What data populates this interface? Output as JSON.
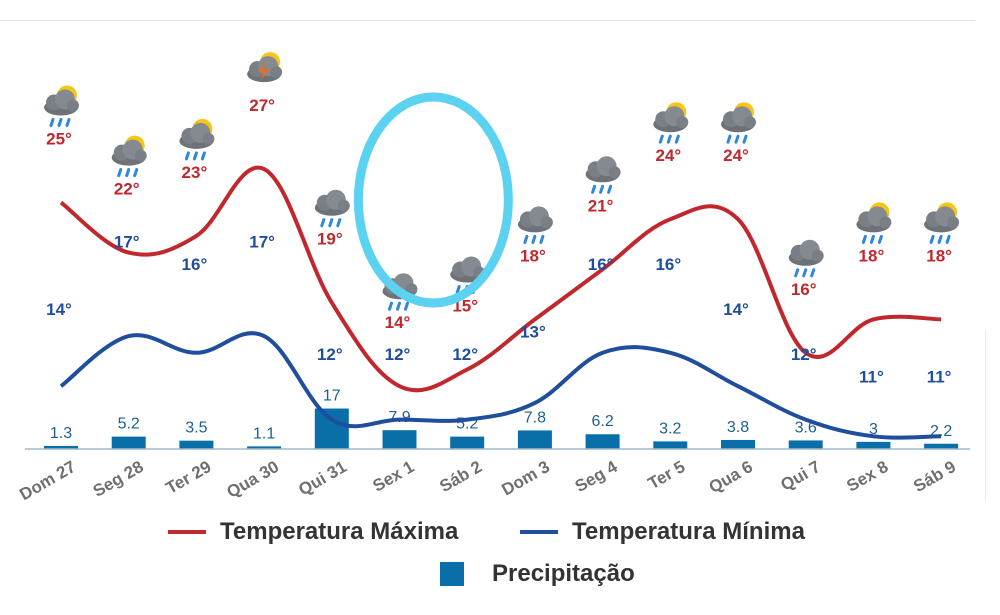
{
  "chart_data": {
    "type": "line",
    "categories": [
      "Dom 27",
      "Seg 28",
      "Ter 29",
      "Qua 30",
      "Qui 31",
      "Sex 1",
      "Sáb 2",
      "Dom 3",
      "Seg 4",
      "Ter 5",
      "Qua 6",
      "Qui 7",
      "Sex 8",
      "Sáb 9"
    ],
    "series": [
      {
        "name": "Temperatura Máxima",
        "color": "#c0282d",
        "values": [
          25,
          22,
          23,
          27,
          19,
          14,
          15,
          18,
          21,
          24,
          24,
          16,
          18,
          18
        ],
        "labels": [
          "25°",
          "22°",
          "23°",
          "27°",
          "19°",
          "14°",
          "15°",
          "18°",
          "21°",
          "24°",
          "24°",
          "16°",
          "18°",
          "18°"
        ]
      },
      {
        "name": "Temperatura Mínima",
        "color": "#1f4e9c",
        "values": [
          14,
          17,
          16,
          17,
          12,
          12,
          12,
          13,
          16,
          16,
          14,
          12,
          11,
          11
        ],
        "labels": [
          "14°",
          "17°",
          "16°",
          "17°",
          "12°",
          "12°",
          "12°",
          "13°",
          "16°",
          "16°",
          "14°",
          "12°",
          "11°",
          "11°"
        ]
      },
      {
        "name": "Precipitação",
        "color": "#0a6fa8",
        "type": "bar",
        "values": [
          1.3,
          5.2,
          3.5,
          1.1,
          17,
          7.9,
          5.2,
          7.8,
          6.2,
          3.2,
          3.8,
          3.6,
          3,
          2.2
        ],
        "labels": [
          "1.3",
          "5.2",
          "3.5",
          "1.1",
          "17",
          "7.9",
          "5.2",
          "7.8",
          "6.2",
          "3.2",
          "3.8",
          "3.6",
          "3",
          "2.2"
        ]
      }
    ],
    "icons": [
      "partly-cloudy-rain-icon",
      "partly-cloudy-rain-icon",
      "partly-cloudy-rain-icon",
      "partly-cloudy-thunderstorm-icon",
      "cloud-rain-icon",
      "cloud-rain-icon",
      "cloud-rain-icon",
      "cloud-rain-icon",
      "cloud-rain-icon",
      "partly-cloudy-rain-icon",
      "partly-cloudy-rain-icon",
      "cloud-rain-icon",
      "partly-cloudy-rain-icon",
      "partly-cloudy-rain-icon"
    ],
    "highlight": {
      "shape": "ellipse",
      "color": "#5bd3f0",
      "categories": [
        "Sex 1",
        "Sáb 2"
      ]
    },
    "grid": false,
    "legend_position": "bottom"
  },
  "legend": {
    "max_label": "Temperatura Máxima",
    "min_label": "Temperatura Mínima",
    "precip_label": "Precipitação",
    "max_color": "#c0282d",
    "min_color": "#1f4e9c",
    "precip_color": "#0a6fa8"
  }
}
